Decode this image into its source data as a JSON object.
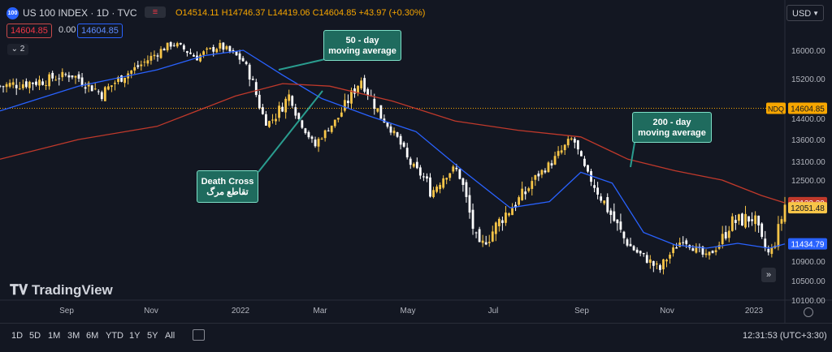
{
  "header": {
    "badge": "100",
    "title": "US 100 INDEX · 1D · TVC",
    "ohlc": "O14514.11 H14746.37 L14419.06 C14604.85 +43.97 (+0.30%)",
    "sell_price": "14604.85",
    "spread": "0.00",
    "buy_price": "14604.85",
    "collapse_label": "2",
    "currency": "USD"
  },
  "footer": {
    "periods": [
      "1D",
      "5D",
      "1M",
      "3M",
      "6M",
      "YTD",
      "1Y",
      "5Y",
      "All"
    ],
    "clock": "12:31:53 (UTC+3:30)",
    "logo": "TradingView",
    "scroll_glyph": "»"
  },
  "annotations": {
    "ma50": [
      "50 - day",
      "moving average"
    ],
    "ma200": [
      "200 - day",
      "moving average"
    ],
    "death_cross": [
      "Death Cross",
      "تقاطع مرگ"
    ]
  },
  "chart_data": {
    "type": "candlestick",
    "xlabel": "",
    "ylabel": "",
    "x_ticks": [
      "Sep",
      "Nov",
      "2022",
      "Mar",
      "May",
      "Jul",
      "Sep",
      "Nov",
      "2023"
    ],
    "y_ticks": [
      16000,
      15200,
      14400,
      13600,
      13100,
      12500,
      11500,
      10900,
      10500,
      10100
    ],
    "ylim": [
      10100,
      16900
    ],
    "close_levels": [
      {
        "x": 0.0,
        "v": 15050
      },
      {
        "x": 0.05,
        "v": 15150
      },
      {
        "x": 0.09,
        "v": 15320
      },
      {
        "x": 0.13,
        "v": 14900
      },
      {
        "x": 0.18,
        "v": 15600
      },
      {
        "x": 0.22,
        "v": 16250
      },
      {
        "x": 0.25,
        "v": 15800
      },
      {
        "x": 0.28,
        "v": 16150
      },
      {
        "x": 0.31,
        "v": 15700
      },
      {
        "x": 0.34,
        "v": 14200
      },
      {
        "x": 0.37,
        "v": 14900
      },
      {
        "x": 0.4,
        "v": 13400
      },
      {
        "x": 0.43,
        "v": 14400
      },
      {
        "x": 0.46,
        "v": 15200
      },
      {
        "x": 0.49,
        "v": 14300
      },
      {
        "x": 0.52,
        "v": 13100
      },
      {
        "x": 0.55,
        "v": 12300
      },
      {
        "x": 0.58,
        "v": 12900
      },
      {
        "x": 0.61,
        "v": 11350
      },
      {
        "x": 0.64,
        "v": 11900
      },
      {
        "x": 0.67,
        "v": 12300
      },
      {
        "x": 0.7,
        "v": 13000
      },
      {
        "x": 0.73,
        "v": 13650
      },
      {
        "x": 0.75,
        "v": 12600
      },
      {
        "x": 0.78,
        "v": 11900
      },
      {
        "x": 0.81,
        "v": 11200
      },
      {
        "x": 0.84,
        "v": 10700
      },
      {
        "x": 0.87,
        "v": 11600
      },
      {
        "x": 0.9,
        "v": 11000
      },
      {
        "x": 0.93,
        "v": 11800
      },
      {
        "x": 0.96,
        "v": 11900
      },
      {
        "x": 0.98,
        "v": 11100
      },
      {
        "x": 1.0,
        "v": 12100
      }
    ],
    "series": [
      {
        "name": "",
        "label": "11434.79",
        "color": "#2962ff",
        "values": [
          {
            "x": 0.0,
            "v": 14550
          },
          {
            "x": 0.1,
            "v": 15050
          },
          {
            "x": 0.2,
            "v": 15450
          },
          {
            "x": 0.26,
            "v": 15850
          },
          {
            "x": 0.31,
            "v": 16000
          },
          {
            "x": 0.36,
            "v": 15300
          },
          {
            "x": 0.41,
            "v": 14800
          },
          {
            "x": 0.47,
            "v": 14450
          },
          {
            "x": 0.53,
            "v": 13900
          },
          {
            "x": 0.59,
            "v": 12800
          },
          {
            "x": 0.65,
            "v": 12050
          },
          {
            "x": 0.7,
            "v": 12150
          },
          {
            "x": 0.74,
            "v": 12750
          },
          {
            "x": 0.78,
            "v": 12450
          },
          {
            "x": 0.82,
            "v": 11650
          },
          {
            "x": 0.86,
            "v": 11400
          },
          {
            "x": 0.9,
            "v": 11300
          },
          {
            "x": 0.94,
            "v": 11450
          },
          {
            "x": 0.98,
            "v": 11300
          },
          {
            "x": 1.0,
            "v": 11430
          }
        ]
      },
      {
        "name": "",
        "label": "12133.29",
        "color": "#c0392b",
        "values": [
          {
            "x": 0.0,
            "v": 13150
          },
          {
            "x": 0.1,
            "v": 13600
          },
          {
            "x": 0.2,
            "v": 14100
          },
          {
            "x": 0.3,
            "v": 14850
          },
          {
            "x": 0.36,
            "v": 15100
          },
          {
            "x": 0.42,
            "v": 15050
          },
          {
            "x": 0.5,
            "v": 14750
          },
          {
            "x": 0.58,
            "v": 14300
          },
          {
            "x": 0.66,
            "v": 13950
          },
          {
            "x": 0.74,
            "v": 13700
          },
          {
            "x": 0.8,
            "v": 13150
          },
          {
            "x": 0.86,
            "v": 12800
          },
          {
            "x": 0.92,
            "v": 12500
          },
          {
            "x": 0.97,
            "v": 12250
          },
          {
            "x": 1.0,
            "v": 12130
          }
        ]
      }
    ],
    "current_price": {
      "label": "NDQ",
      "value": "14604.85",
      "color": "#f7a600"
    },
    "last_price": "12051.48",
    "ma50_value": "11434.79",
    "ma200_value": "12133.29",
    "up_color": "#f7c548",
    "down_color": "#ffffff"
  }
}
